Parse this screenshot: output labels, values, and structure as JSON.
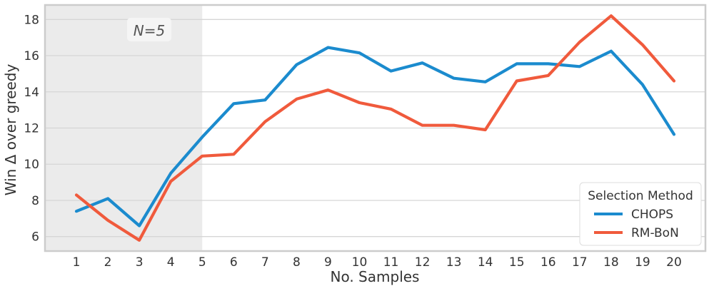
{
  "chart_data": {
    "type": "line",
    "xlabel": "No. Samples",
    "ylabel": "Win Δ over greedy",
    "x": [
      1,
      2,
      3,
      4,
      5,
      6,
      7,
      8,
      9,
      10,
      11,
      12,
      13,
      14,
      15,
      16,
      17,
      18,
      19,
      20
    ],
    "xlim": [
      0,
      21
    ],
    "ylim": [
      5.2,
      18.8
    ],
    "yticks": [
      6,
      8,
      10,
      12,
      14,
      16,
      18
    ],
    "grid": true,
    "legend": {
      "title": "Selection Method",
      "placement": "lower-right"
    },
    "annotation": {
      "text": "N=5",
      "shaded_x_range": [
        0,
        5
      ]
    },
    "series": [
      {
        "name": "CHOPS",
        "color": "#1b8bce",
        "values": [
          7.4,
          8.1,
          6.6,
          9.5,
          11.5,
          13.35,
          13.55,
          15.5,
          16.45,
          16.15,
          15.15,
          15.6,
          14.75,
          14.55,
          15.55,
          15.55,
          15.4,
          16.25,
          14.4,
          11.65
        ]
      },
      {
        "name": "RM-BoN",
        "color": "#f05a3c",
        "values": [
          8.3,
          6.9,
          5.8,
          9.05,
          10.45,
          10.55,
          12.35,
          13.6,
          14.1,
          13.4,
          13.05,
          12.15,
          12.15,
          11.9,
          14.6,
          14.9,
          16.75,
          18.2,
          16.6,
          14.6
        ]
      }
    ]
  }
}
